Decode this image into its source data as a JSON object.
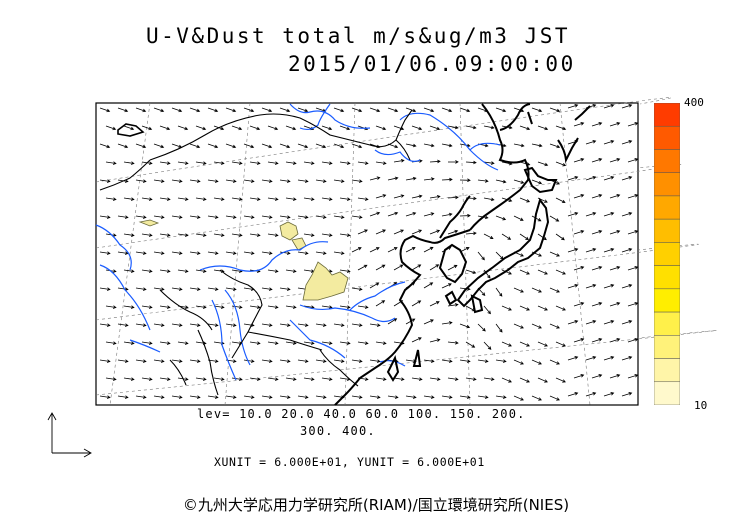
{
  "title": {
    "line1": "U-V&Dust total m/s&ug/m3 JST",
    "line2": "2015/01/06.09:00:00"
  },
  "legend_levels": {
    "line1": "lev= 10.0 20.0 40.0 60.0 100. 150. 200.",
    "line2": "300. 400."
  },
  "units_text": "XUNIT = 6.000E+01, YUNIT = 6.000E+01",
  "credit": "©九州大学応用力学研究所(RIAM)/国立環境研究所(NIES)",
  "colorbar": {
    "max_label": "400",
    "min_label": "10",
    "colors": [
      "#fff9cc",
      "#fff5a8",
      "#fff27a",
      "#fff04a",
      "#ffee00",
      "#ffe000",
      "#ffd000",
      "#ffbe00",
      "#ffa800",
      "#ff9000",
      "#ff7800",
      "#ff5a00",
      "#ff3c00"
    ]
  },
  "colors": {
    "coast": "#000000",
    "rivers": "#1a5cff",
    "dust_fill": "#f3eba0",
    "grid": "#666666"
  }
}
